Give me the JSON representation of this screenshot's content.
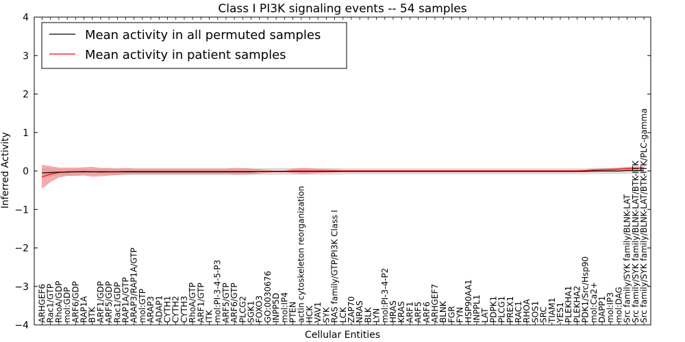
{
  "chart_data": {
    "type": "line",
    "title": "Class I PI3K signaling events -- 54 samples",
    "xlabel": "Cellular Entities",
    "ylabel": "Inferred Activity",
    "ylim": [
      -4,
      4
    ],
    "yticks": [
      -4,
      -3,
      -2,
      -1,
      0,
      1,
      2,
      3,
      4
    ],
    "ytick_labels": [
      "−4",
      "−3",
      "−2",
      "−1",
      "0",
      "1",
      "2",
      "3",
      "4"
    ],
    "grid": false,
    "legend": "top-left",
    "categories": [
      "ARHGEF6",
      "Rac1/GTP",
      "RhoA/GDP",
      "mol:GDP",
      "ARF6/GDP",
      "RAP1A",
      "BTK",
      "ARF1/GDP",
      "ARF5/GDP",
      "Rac1/GDP",
      "RAP1A/GTP",
      "ARAP3/RAP1A/GTP",
      "mol:GTP",
      "ARAP3",
      "ADAP1",
      "CYTH1",
      "CYTH2",
      "CYTH3",
      "RhoA/GTP",
      "ARF1/GTP",
      "ITK",
      "mol:PI-3-4-5-P3",
      "ARF5/GTP",
      "ARF6/GTP",
      "PLCG2",
      "SGK1",
      "FOXO3",
      "GO:0030676",
      "INPP5D",
      "mol:IP4",
      "PTEN",
      "actin cytoskeleton reorganization",
      "HCK",
      "VAV1",
      "SYK",
      "RAS family/GTP/PI3K Class I",
      "LCK",
      "ZAP70",
      "NRAS",
      "BLK",
      "LYN",
      "mol:PI-3-4-P2",
      "HRAS",
      "KRAS",
      "ARF1",
      "ARF5",
      "ARF6",
      "ARHGEF7",
      "BLNK",
      "FGR",
      "FYN",
      "HSP90AA1",
      "INPPL1",
      "LAT",
      "PDPK1",
      "PLCG1",
      "PREX1",
      "RAC1",
      "RHOA",
      "SOS1",
      "SRC",
      "TIAM1",
      "YES1",
      "PLEKHA1",
      "PLEKHA2",
      "PDK1/Src/Hsp90",
      "mol:Ca2+",
      "DAPP1",
      "mol:IP3",
      "mol:DAG",
      "Src family/SYK family/BLNK-LAT",
      "Src family/SYK family/BLNK-LAT/BTK-ITK",
      "Src family/SYK family/BLNK-LAT/BTK-ITK/PLC-gamma"
    ],
    "series": [
      {
        "name": "Mean activity in all permuted samples",
        "color": "#000000",
        "band_color": "#c8c8c8",
        "values": [
          -0.05,
          -0.04,
          -0.03,
          -0.03,
          -0.02,
          -0.02,
          -0.02,
          -0.02,
          -0.02,
          -0.02,
          -0.02,
          -0.02,
          -0.02,
          -0.02,
          -0.02,
          -0.02,
          -0.02,
          -0.02,
          -0.02,
          -0.02,
          -0.02,
          -0.02,
          -0.02,
          -0.02,
          -0.02,
          -0.02,
          -0.01,
          -0.01,
          -0.01,
          -0.01,
          -0.01,
          -0.01,
          -0.01,
          -0.01,
          -0.01,
          -0.01,
          -0.01,
          -0.01,
          -0.01,
          -0.01,
          -0.01,
          -0.01,
          -0.01,
          -0.01,
          -0.01,
          -0.01,
          -0.01,
          -0.01,
          -0.01,
          -0.01,
          -0.01,
          -0.01,
          -0.01,
          -0.01,
          -0.01,
          -0.01,
          -0.01,
          -0.01,
          -0.01,
          -0.01,
          -0.01,
          -0.01,
          -0.01,
          -0.01,
          -0.01,
          -0.01,
          0.0,
          0.0,
          0.0,
          0.0,
          0.01,
          0.01,
          0.01
        ],
        "band": [
          0.12,
          0.1,
          0.08,
          0.07,
          0.07,
          0.07,
          0.07,
          0.07,
          0.07,
          0.07,
          0.07,
          0.07,
          0.07,
          0.07,
          0.07,
          0.07,
          0.07,
          0.07,
          0.07,
          0.07,
          0.07,
          0.07,
          0.07,
          0.07,
          0.07,
          0.07,
          0.08,
          0.08,
          0.08,
          0.08,
          0.08,
          0.08,
          0.08,
          0.08,
          0.08,
          0.08,
          0.07,
          0.07,
          0.07,
          0.07,
          0.07,
          0.07,
          0.07,
          0.07,
          0.07,
          0.07,
          0.07,
          0.07,
          0.07,
          0.07,
          0.07,
          0.07,
          0.07,
          0.07,
          0.07,
          0.07,
          0.07,
          0.07,
          0.07,
          0.07,
          0.07,
          0.07,
          0.07,
          0.07,
          0.07,
          0.07,
          0.07,
          0.07,
          0.07,
          0.07,
          0.07,
          0.07,
          0.07
        ]
      },
      {
        "name": "Mean activity in patient samples",
        "color": "#ff0000",
        "band_color": "#f08080",
        "values": [
          -0.15,
          -0.08,
          -0.04,
          -0.02,
          -0.02,
          -0.01,
          -0.02,
          -0.03,
          -0.02,
          -0.02,
          -0.01,
          -0.01,
          -0.01,
          -0.01,
          -0.01,
          -0.01,
          -0.01,
          -0.01,
          -0.01,
          -0.01,
          -0.01,
          -0.01,
          -0.01,
          -0.01,
          -0.01,
          -0.01,
          -0.01,
          -0.01,
          -0.01,
          -0.01,
          0.0,
          0.0,
          0.0,
          0.0,
          0.0,
          0.0,
          0.0,
          0.0,
          0.0,
          0.0,
          0.0,
          0.0,
          0.0,
          0.0,
          0.0,
          0.0,
          0.0,
          0.0,
          0.0,
          0.0,
          0.0,
          0.0,
          0.0,
          0.0,
          0.0,
          0.0,
          0.0,
          0.0,
          0.0,
          0.0,
          0.0,
          0.0,
          0.0,
          0.0,
          0.0,
          0.01,
          0.02,
          0.03,
          0.04,
          0.05,
          0.06,
          0.07,
          0.07
        ],
        "band": [
          0.3,
          0.2,
          0.12,
          0.1,
          0.1,
          0.1,
          0.12,
          0.1,
          0.09,
          0.08,
          0.08,
          0.07,
          0.07,
          0.07,
          0.07,
          0.07,
          0.07,
          0.07,
          0.07,
          0.07,
          0.07,
          0.07,
          0.07,
          0.08,
          0.08,
          0.07,
          0.05,
          0.03,
          0.02,
          0.02,
          0.05,
          0.07,
          0.06,
          0.05,
          0.04,
          0.03,
          0.02,
          0.02,
          0.02,
          0.02,
          0.02,
          0.02,
          0.02,
          0.02,
          0.02,
          0.02,
          0.02,
          0.02,
          0.02,
          0.02,
          0.02,
          0.02,
          0.02,
          0.02,
          0.02,
          0.02,
          0.02,
          0.02,
          0.02,
          0.02,
          0.02,
          0.02,
          0.02,
          0.02,
          0.02,
          0.02,
          0.03,
          0.03,
          0.03,
          0.03,
          0.04,
          0.04,
          0.04
        ]
      }
    ]
  }
}
